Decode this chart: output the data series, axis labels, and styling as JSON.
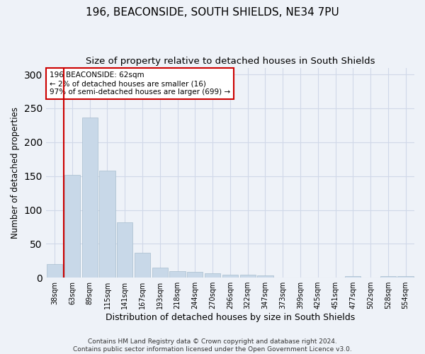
{
  "title1": "196, BEACONSIDE, SOUTH SHIELDS, NE34 7PU",
  "title2": "Size of property relative to detached houses in South Shields",
  "xlabel": "Distribution of detached houses by size in South Shields",
  "ylabel": "Number of detached properties",
  "categories": [
    "38sqm",
    "63sqm",
    "89sqm",
    "115sqm",
    "141sqm",
    "167sqm",
    "193sqm",
    "218sqm",
    "244sqm",
    "270sqm",
    "296sqm",
    "322sqm",
    "347sqm",
    "373sqm",
    "399sqm",
    "425sqm",
    "451sqm",
    "477sqm",
    "502sqm",
    "528sqm",
    "554sqm"
  ],
  "values": [
    20,
    152,
    236,
    158,
    82,
    37,
    15,
    10,
    9,
    6,
    4,
    4,
    3,
    0,
    0,
    0,
    0,
    2,
    0,
    2,
    2
  ],
  "bar_color": "#c8d8e8",
  "bar_edge_color": "#a8bece",
  "grid_color": "#d0d8e8",
  "background_color": "#eef2f8",
  "vline_color": "#cc0000",
  "annotation_text": "196 BEACONSIDE: 62sqm\n← 2% of detached houses are smaller (16)\n97% of semi-detached houses are larger (699) →",
  "annotation_box_color": "#ffffff",
  "annotation_box_edge": "#cc0000",
  "footer": "Contains HM Land Registry data © Crown copyright and database right 2024.\nContains public sector information licensed under the Open Government Licence v3.0.",
  "ylim": [
    0,
    310
  ],
  "title1_fontsize": 11,
  "title2_fontsize": 9.5,
  "ylabel_fontsize": 8.5,
  "xlabel_fontsize": 9,
  "tick_fontsize": 7,
  "footer_fontsize": 6.5
}
